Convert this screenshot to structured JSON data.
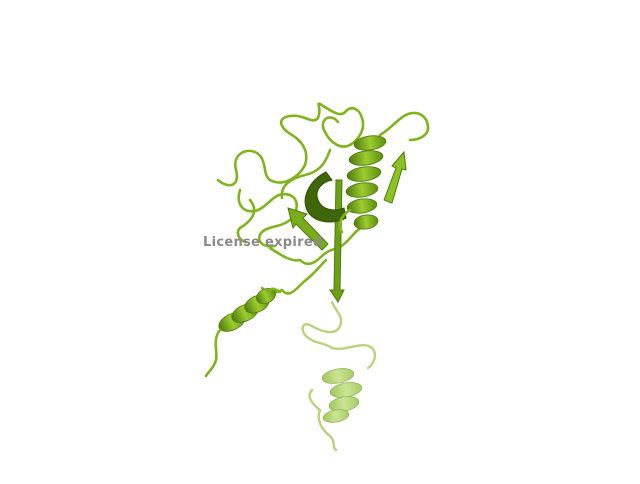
{
  "viewer": {
    "watermark_text": "License expired",
    "background_color": "#ffffff",
    "structure": {
      "representation": "cartoon",
      "color": "#7fb51c",
      "shade_color": "#4f7a0c",
      "highlight_color": "#a8d83a",
      "faded_color": "#b9d97a"
    }
  }
}
